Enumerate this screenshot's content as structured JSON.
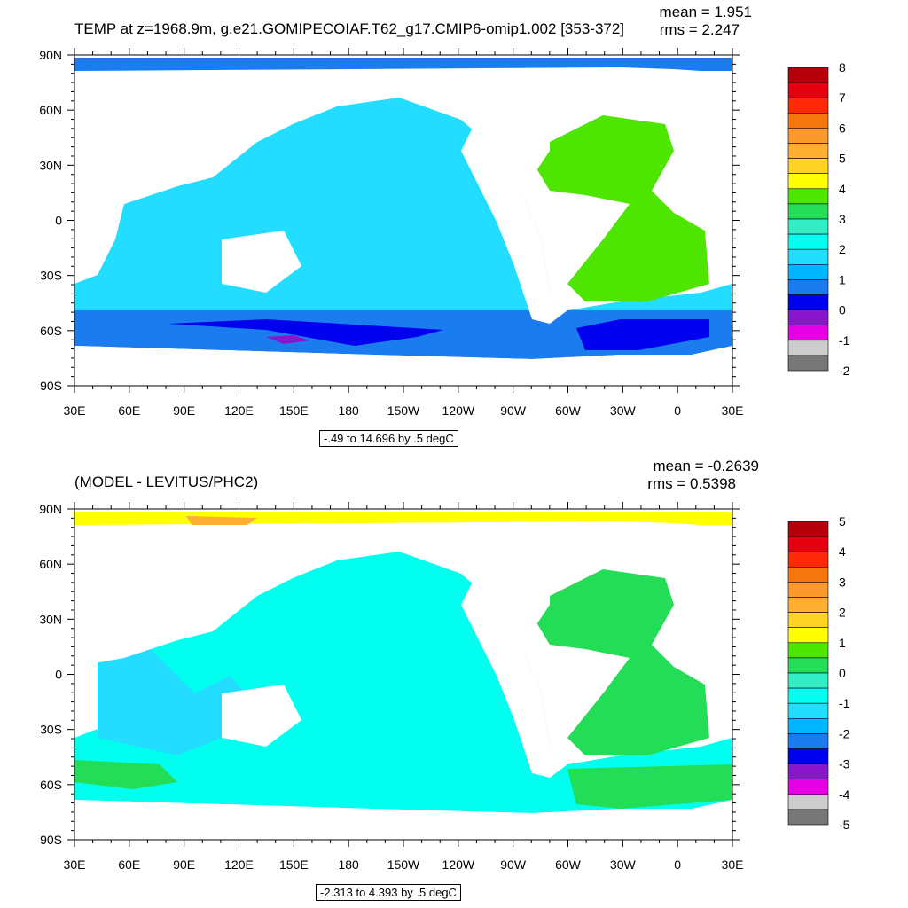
{
  "chart_data": [
    {
      "type": "heatmap",
      "title": "TEMP at z=1968.9m, g.e21.GOMIPECOIAF.T62_g17.CMIP6-omip1.002 [353-372]",
      "stat_mean": "mean = 1.951",
      "stat_rms": "rms = 2.247",
      "x_ticks": [
        "30E",
        "60E",
        "90E",
        "120E",
        "150E",
        "180",
        "150W",
        "120W",
        "90W",
        "60W",
        "30W",
        "0",
        "30E"
      ],
      "y_ticks": [
        "90N",
        "60N",
        "30N",
        "0",
        "30S",
        "60S",
        "90S"
      ],
      "xlim": [
        30,
        390
      ],
      "ylim": [
        -90,
        90
      ],
      "range_label": "-.49 to 14.696 by .5 degC",
      "colorbar_labels": [
        "8",
        "7",
        "6",
        "5",
        "4",
        "3",
        "2",
        "1",
        "0",
        "-1",
        "-2"
      ],
      "colorbar_colors": [
        "#b4000a",
        "#e4000f",
        "#ff2a0a",
        "#f4760c",
        "#fb9a2a",
        "#fdb032",
        "#ffd224",
        "#ffff00",
        "#4ee600",
        "#22dd55",
        "#33eec4",
        "#00ffee",
        "#22ddff",
        "#00b7ff",
        "#1a7cee",
        "#0000ee",
        "#8a16cc",
        "#e400e4",
        "#cccccc",
        "#777777"
      ]
    },
    {
      "type": "heatmap",
      "title": "(MODEL - LEVITUS/PHC2)",
      "stat_mean": "mean = -0.2639",
      "stat_rms": "rms = 0.5398",
      "x_ticks": [
        "30E",
        "60E",
        "90E",
        "120E",
        "150E",
        "180",
        "150W",
        "120W",
        "90W",
        "60W",
        "30W",
        "0",
        "30E"
      ],
      "y_ticks": [
        "90N",
        "60N",
        "30N",
        "0",
        "30S",
        "60S",
        "90S"
      ],
      "xlim": [
        30,
        390
      ],
      "ylim": [
        -90,
        90
      ],
      "range_label": "-2.313 to 4.393 by .5 degC",
      "colorbar_labels": [
        "5",
        "4",
        "3",
        "2",
        "1",
        "0",
        "-1",
        "-2",
        "-3",
        "-4",
        "-5"
      ],
      "colorbar_colors": [
        "#b4000a",
        "#e4000f",
        "#ff2a0a",
        "#f4760c",
        "#fb9a2a",
        "#fdb032",
        "#ffd224",
        "#ffff00",
        "#4ee600",
        "#22dd55",
        "#33eec4",
        "#00ffee",
        "#22ddff",
        "#00b7ff",
        "#1a7cee",
        "#0000ee",
        "#8a16cc",
        "#e400e4",
        "#cccccc",
        "#777777"
      ]
    }
  ]
}
